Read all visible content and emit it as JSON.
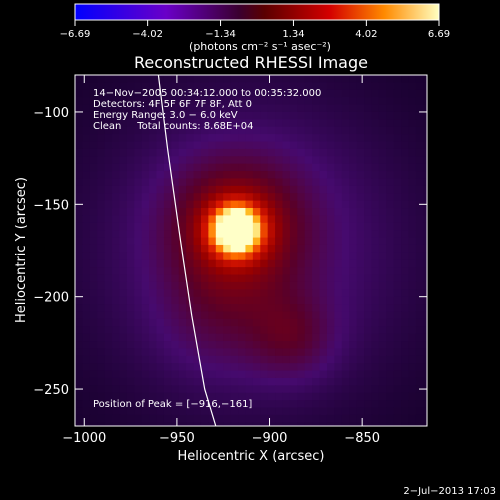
{
  "chart_data": {
    "type": "heatmap",
    "title": "Reconstructed RHESSI Image",
    "xlabel": "Heliocentric X (arcsec)",
    "ylabel": "Heliocentric Y (arcsec)",
    "xlim": [
      -1005,
      -815
    ],
    "ylim": [
      -270,
      -80
    ],
    "x_ticks": [
      {
        "value": -1000,
        "label": "−1000"
      },
      {
        "value": -950,
        "label": "−950"
      },
      {
        "value": -900,
        "label": "−900"
      },
      {
        "value": -850,
        "label": "−850"
      }
    ],
    "y_ticks": [
      {
        "value": -100,
        "label": "−100"
      },
      {
        "value": -150,
        "label": "−150"
      },
      {
        "value": -200,
        "label": "−200"
      },
      {
        "value": -250,
        "label": "−250"
      }
    ],
    "colorbar": {
      "min": -6.69,
      "max": 6.69,
      "tick_values": [
        -6.69,
        -4.02,
        -1.34,
        1.34,
        4.02,
        6.69
      ],
      "tick_labels": [
        "−6.69",
        "−4.02",
        "−1.34",
        "1.34",
        "4.02",
        "6.69"
      ],
      "unit_label": "(photons cm⁻² s⁻¹ asec⁻²)"
    },
    "info_lines": [
      "14−Nov−2005 00:34:12.000 to 00:35:32.000",
      "Detectors: 4F 5F 6F 7F 8F, Att 0",
      "Energy Range: 3.0 − 6.0 keV",
      "Clean     Total counts: 8.68E+04"
    ],
    "peak_label": "Position of Peak = [−916,−161]",
    "peak_position": [
      -916,
      -161
    ],
    "limb_curve": [
      [
        -960,
        -80
      ],
      [
        -955,
        -120
      ],
      [
        -948,
        -170
      ],
      [
        -942,
        -210
      ],
      [
        -935,
        -250
      ],
      [
        -929,
        -270
      ]
    ],
    "emission_sources": [
      {
        "x": -918,
        "y": -164,
        "intensity": 6.69,
        "sigma": 9
      },
      {
        "x": -918,
        "y": -162,
        "intensity": 2.2,
        "sigma": 24
      },
      {
        "x": -888,
        "y": -222,
        "intensity": 1.1,
        "sigma": 16
      },
      {
        "x": -928,
        "y": -212,
        "intensity": 0.6,
        "sigma": 22
      },
      {
        "x": -910,
        "y": -175,
        "intensity": 1.3,
        "sigma": 60
      }
    ],
    "timestamp": "2−Jul−2013 17:03"
  }
}
